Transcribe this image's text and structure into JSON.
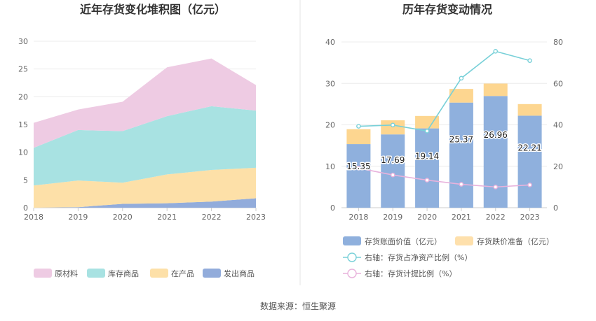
{
  "source_text": "数据来源：恒生聚源",
  "chart_data": [
    {
      "type": "area",
      "stacked": true,
      "title": "近年存货变化堆积图（亿元）",
      "x": [
        "2018",
        "2019",
        "2020",
        "2021",
        "2022",
        "2023"
      ],
      "ylim": [
        0,
        30
      ],
      "yticks": [
        "0",
        "5",
        "10",
        "15",
        "20",
        "25",
        "30"
      ],
      "grid": true,
      "legend_position": "bottom",
      "series": [
        {
          "name": "发出商品",
          "color": "#92acdb",
          "values": [
            0.0,
            0.1,
            0.7,
            0.8,
            1.1,
            1.7
          ]
        },
        {
          "name": "在产品",
          "color": "#fde0a8",
          "values": [
            4.0,
            4.8,
            3.8,
            5.2,
            5.7,
            5.5
          ]
        },
        {
          "name": "库存商品",
          "color": "#a8e2e2",
          "values": [
            6.8,
            9.1,
            9.3,
            10.5,
            11.5,
            10.3
          ]
        },
        {
          "name": "原材料",
          "color": "#eecbe3",
          "values": [
            4.5,
            3.7,
            5.3,
            8.8,
            8.6,
            4.6
          ]
        }
      ],
      "legend_order": [
        "原材料",
        "库存商品",
        "在产品",
        "发出商品"
      ]
    },
    {
      "type": "bar",
      "title": "历年存货变动情况",
      "categories": [
        "2018",
        "2019",
        "2020",
        "2021",
        "2022",
        "2023"
      ],
      "ylim": [
        0,
        40
      ],
      "yticks": [
        "0",
        "10",
        "20",
        "30",
        "40"
      ],
      "y2lim": [
        0,
        80
      ],
      "y2ticks": [
        "0",
        "20",
        "40",
        "60",
        "80"
      ],
      "grid": true,
      "legend_position": "bottom",
      "bars": [
        {
          "name": "存货账面价值（亿元）",
          "color": "#8fb0dd",
          "values": [
            15.35,
            17.69,
            19.14,
            25.37,
            26.96,
            22.21
          ],
          "labels": [
            "15.35",
            "17.69",
            "19.14",
            "25.37",
            "26.96",
            "22.21"
          ]
        },
        {
          "name": "存货跌价准备（亿元）",
          "color": "#fdd690",
          "values": [
            3.6,
            3.4,
            3.0,
            3.3,
            3.0,
            2.8
          ]
        }
      ],
      "lines": [
        {
          "name": "右轴：存货占净资产比例（%）",
          "color": "#78d0d8",
          "values": [
            39.3,
            39.9,
            37.0,
            62.5,
            75.5,
            71.0
          ]
        },
        {
          "name": "右轴：存货计提比例（%）",
          "color": "#e8b2dc",
          "values": [
            19.1,
            15.8,
            13.3,
            11.3,
            10.0,
            11.0
          ]
        }
      ]
    }
  ]
}
